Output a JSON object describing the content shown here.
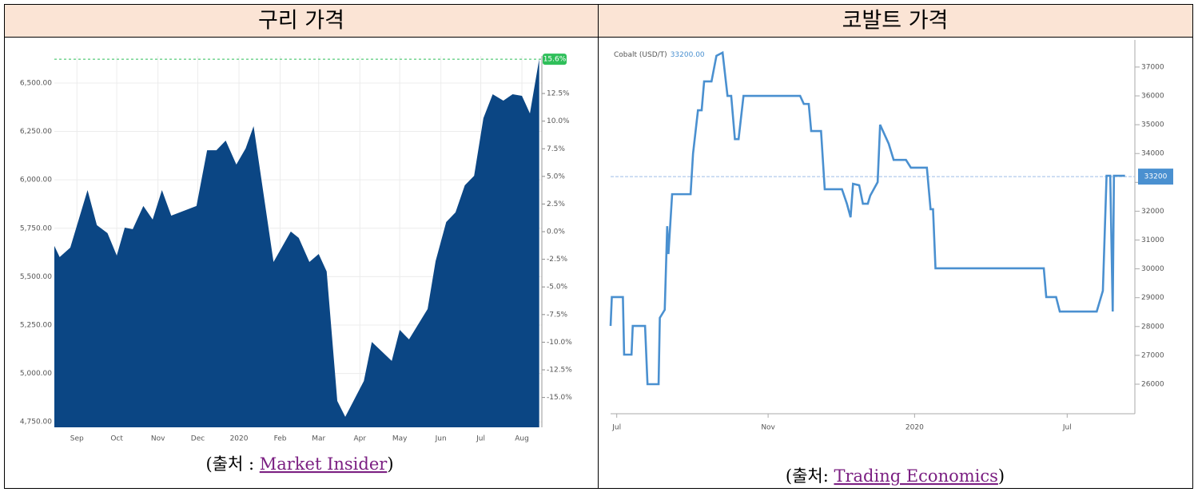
{
  "table": {
    "headers": [
      "구리 가격",
      "코발트 가격"
    ]
  },
  "captions": [
    {
      "prefix": "(출처 : ",
      "link": "Market Insider",
      "suffix": ")"
    },
    {
      "prefix": "(출처: ",
      "link": "Trading Economics",
      "suffix": ")"
    }
  ],
  "chart_data": [
    {
      "type": "area",
      "grid": true,
      "x": [
        0,
        4,
        12,
        25,
        32,
        40,
        47,
        53,
        59,
        67,
        74,
        81,
        88,
        107,
        115,
        122,
        129,
        137,
        144,
        150,
        165,
        178,
        184,
        192,
        199,
        205,
        213,
        219,
        233,
        239,
        254,
        260,
        267,
        281,
        287,
        295,
        302,
        309,
        316,
        323,
        330,
        338,
        345,
        352,
        358,
        365
      ],
      "series": [
        {
          "color": "#0b4684",
          "values": [
            5659,
            5601,
            5650,
            5947,
            5766,
            5725,
            5609,
            5753,
            5745,
            5865,
            5795,
            5947,
            5815,
            5865,
            6153,
            6153,
            6203,
            6079,
            6162,
            6277,
            5576,
            5733,
            5700,
            5576,
            5617,
            5527,
            4858,
            4776,
            4961,
            5163,
            5065,
            5225,
            5176,
            5333,
            5580,
            5782,
            5832,
            5972,
            6021,
            6319,
            6442,
            6409,
            6442,
            6434,
            6343,
            6624
          ]
        }
      ],
      "xlim": [
        0,
        367
      ],
      "xticks": [
        {
          "value": 17,
          "label": "Sep"
        },
        {
          "value": 47,
          "label": "Oct"
        },
        {
          "value": 78,
          "label": "Nov"
        },
        {
          "value": 108,
          "label": "Dec"
        },
        {
          "value": 139,
          "label": "2020"
        },
        {
          "value": 170,
          "label": "Feb"
        },
        {
          "value": 199,
          "label": "Mar"
        },
        {
          "value": 230,
          "label": "Apr"
        },
        {
          "value": 260,
          "label": "May"
        },
        {
          "value": 291,
          "label": "Jun"
        },
        {
          "value": 321,
          "label": "Jul"
        },
        {
          "value": 352,
          "label": "Aug"
        }
      ],
      "ylim": [
        4722,
        6640
      ],
      "yticks": [
        {
          "value": 4750,
          "label": "4,750.00"
        },
        {
          "value": 5000,
          "label": "5,000.00"
        },
        {
          "value": 5250,
          "label": "5,250.00"
        },
        {
          "value": 5500,
          "label": "5,500.00"
        },
        {
          "value": 5750,
          "label": "5,750.00"
        },
        {
          "value": 6000,
          "label": "6,000.00"
        },
        {
          "value": 6250,
          "label": "6,250.00"
        },
        {
          "value": 6500,
          "label": "6,500.00"
        }
      ],
      "y2lim": [
        -17.7,
        15.9
      ],
      "y2ticks": [
        {
          "value": -15,
          "label": "-15.0%"
        },
        {
          "value": -12.5,
          "label": "-12.5%"
        },
        {
          "value": -10,
          "label": "-10.0%"
        },
        {
          "value": -7.5,
          "label": "-7.5%"
        },
        {
          "value": -5,
          "label": "-5.0%"
        },
        {
          "value": -2.5,
          "label": "-2.5%"
        },
        {
          "value": 0,
          "label": "0.0%"
        },
        {
          "value": 2.5,
          "label": "2.5%"
        },
        {
          "value": 5,
          "label": "5.0%"
        },
        {
          "value": 7.5,
          "label": "7.5%"
        },
        {
          "value": 10,
          "label": "10.0%"
        },
        {
          "value": 12.5,
          "label": "12.5%"
        }
      ],
      "reference_line": {
        "axis": "y2",
        "value": 15.6,
        "label": "15.6%",
        "color": "#2fbf5a"
      }
    },
    {
      "type": "line",
      "title": "Cobalt (USD/T)",
      "current_label": "33200.00",
      "x": [
        -5,
        -4,
        5,
        6,
        12,
        13,
        23,
        25,
        34,
        35,
        39,
        41,
        42,
        45,
        60,
        62,
        66,
        69,
        71,
        77,
        81,
        86,
        90,
        93,
        96,
        99,
        103,
        149,
        152,
        156,
        158,
        166,
        169,
        183,
        187,
        190,
        192,
        197,
        200,
        204,
        206,
        212,
        214,
        218,
        221,
        225,
        235,
        239,
        252,
        255,
        257,
        259,
        347,
        349,
        357,
        360,
        390,
        395,
        398,
        401,
        403,
        404,
        413
      ],
      "series": [
        {
          "color": "#4a90d0",
          "values": [
            28020,
            29020,
            29020,
            27025,
            27025,
            28020,
            28020,
            26000,
            26000,
            28300,
            28580,
            31480,
            30515,
            32590,
            32590,
            34000,
            35500,
            35500,
            36500,
            36500,
            37390,
            37500,
            36000,
            36000,
            34500,
            34500,
            36000,
            36000,
            35720,
            35720,
            34780,
            34780,
            32760,
            32760,
            32260,
            31790,
            32950,
            32900,
            32260,
            32260,
            32540,
            33010,
            35000,
            34620,
            34340,
            33780,
            33780,
            33510,
            33510,
            32070,
            32070,
            30020,
            30020,
            29020,
            29020,
            28520,
            28520,
            29240,
            33230,
            33230,
            28520,
            33230,
            33230
          ]
        }
      ],
      "xlim": [
        -5,
        421
      ],
      "xticks": [
        {
          "value": 0,
          "label": "Jul"
        },
        {
          "value": 123,
          "label": "Nov"
        },
        {
          "value": 242,
          "label": "2020"
        },
        {
          "value": 366,
          "label": "Jul"
        }
      ],
      "ylim": [
        24975,
        37940
      ],
      "yticks": [
        26000,
        27000,
        28000,
        29000,
        30000,
        31000,
        32000,
        33000,
        34000,
        35000,
        36000,
        37000
      ],
      "reference_line": {
        "value": 33200,
        "label": "33200"
      }
    }
  ]
}
